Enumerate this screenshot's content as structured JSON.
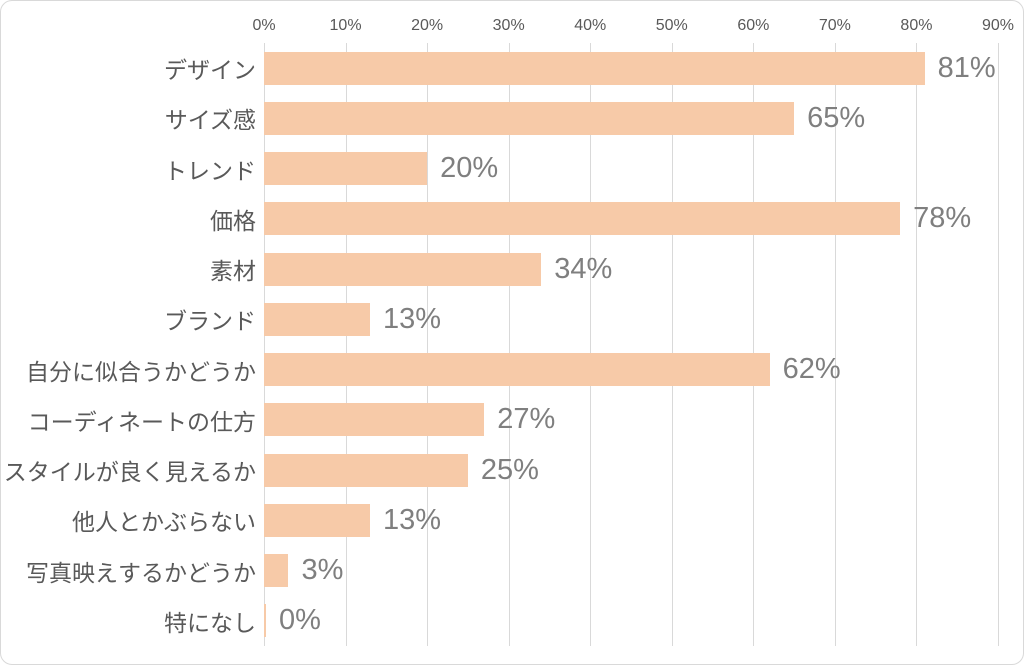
{
  "chart_data": {
    "type": "bar",
    "orientation": "horizontal",
    "categories": [
      "デザイン",
      "サイズ感",
      "トレンド",
      "価格",
      "素材",
      "ブランド",
      "自分に似合うかどうか",
      "コーディネートの仕方",
      "スタイルが良く見えるか",
      "他人とかぶらない",
      "写真映えするかどうか",
      "特になし"
    ],
    "values": [
      81,
      65,
      20,
      78,
      34,
      13,
      62,
      27,
      25,
      13,
      3,
      0
    ],
    "value_labels": [
      "81%",
      "65%",
      "20%",
      "78%",
      "34%",
      "13%",
      "62%",
      "27%",
      "25%",
      "13%",
      "3%",
      "0%"
    ],
    "x_axis": {
      "position": "top",
      "min": 0,
      "max": 90,
      "step": 10,
      "tick_labels": [
        "0%",
        "10%",
        "20%",
        "30%",
        "40%",
        "50%",
        "60%",
        "70%",
        "80%",
        "90%"
      ]
    },
    "grid": true,
    "legend": false,
    "colors": {
      "bar_fill": "#F7CAA8",
      "gridline": "#D9D9D9",
      "tick_label": "#595959",
      "category_label": "#595959",
      "value_label": "#7F7F7F",
      "background": "#FFFFFF",
      "frame_border": "#D9D9D9"
    }
  }
}
